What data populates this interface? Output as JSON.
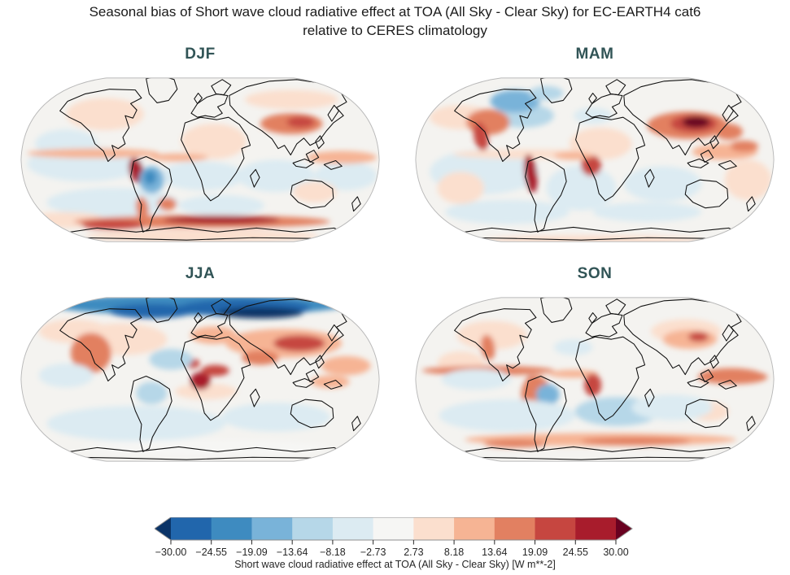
{
  "figure": {
    "title_line1": "Seasonal bias of Short wave cloud radiative effect at TOA (All Sky - Clear Sky) for EC-EARTH4 cat6",
    "title_line2": "relative to CERES climatology"
  },
  "map_base_color": "#f4f3f0",
  "map_palette": [
    "#0b3467",
    "#2166ac",
    "#3e8bc0",
    "#79b3d9",
    "#b6d7e8",
    "#dcebf2",
    "#f6f6f4",
    "#fbdfce",
    "#f6b494",
    "#e28061",
    "#c64640",
    "#a81c2c",
    "#690120"
  ],
  "feature_format": "cx,cy,rx,ry,palette_index,rotation_deg(optional) in 465x230 map coords",
  "panels": [
    {
      "id": "djf",
      "label": "DJF",
      "features": [
        [
          85,
          120,
          75,
          22,
          5
        ],
        [
          235,
          135,
          55,
          18,
          5
        ],
        [
          330,
          135,
          50,
          20,
          5
        ],
        [
          120,
          168,
          85,
          18,
          5
        ],
        [
          260,
          172,
          55,
          13,
          5
        ],
        [
          420,
          135,
          40,
          18,
          5
        ],
        [
          60,
          95,
          40,
          18,
          5
        ],
        [
          110,
          58,
          50,
          20,
          7
        ],
        [
          250,
          92,
          42,
          22,
          7
        ],
        [
          380,
          155,
          28,
          13,
          7
        ],
        [
          60,
          190,
          50,
          10,
          7
        ],
        [
          235,
          210,
          150,
          8,
          7
        ],
        [
          350,
          40,
          60,
          12,
          7
        ],
        [
          95,
          107,
          85,
          6,
          8
        ],
        [
          205,
          112,
          38,
          5,
          8
        ],
        [
          415,
          112,
          45,
          8,
          8
        ],
        [
          350,
          70,
          40,
          13,
          9
        ],
        [
          362,
          68,
          18,
          7,
          10
        ],
        [
          150,
          128,
          9,
          16,
          11,
          -15
        ],
        [
          158,
          175,
          8,
          14,
          9,
          -10
        ],
        [
          190,
          170,
          12,
          8,
          9
        ],
        [
          235,
          192,
          165,
          8,
          9
        ],
        [
          260,
          190,
          75,
          5,
          11
        ],
        [
          120,
          196,
          40,
          6,
          10
        ],
        [
          170,
          140,
          16,
          17,
          3
        ],
        [
          168,
          137,
          8,
          9,
          2
        ]
      ]
    },
    {
      "id": "mam",
      "label": "MAM",
      "features": [
        [
          90,
          130,
          70,
          28,
          5
        ],
        [
          215,
          150,
          45,
          28,
          5
        ],
        [
          320,
          145,
          50,
          22,
          5
        ],
        [
          140,
          60,
          40,
          15,
          4
        ],
        [
          230,
          60,
          25,
          10,
          5
        ],
        [
          120,
          180,
          80,
          15,
          5
        ],
        [
          300,
          180,
          70,
          12,
          5
        ],
        [
          130,
          42,
          32,
          14,
          3
        ],
        [
          170,
          32,
          22,
          9,
          4
        ],
        [
          60,
          62,
          40,
          15,
          7
        ],
        [
          150,
          108,
          100,
          6,
          7
        ],
        [
          240,
          95,
          40,
          20,
          7
        ],
        [
          60,
          150,
          30,
          20,
          7
        ],
        [
          430,
          140,
          30,
          25,
          7
        ],
        [
          230,
          215,
          140,
          6,
          7
        ],
        [
          95,
          68,
          28,
          16,
          9
        ],
        [
          86,
          86,
          9,
          18,
          10,
          -12
        ],
        [
          352,
          72,
          52,
          17,
          9
        ],
        [
          360,
          70,
          30,
          11,
          10
        ],
        [
          363,
          68,
          18,
          7,
          12
        ],
        [
          405,
          80,
          18,
          10,
          9
        ],
        [
          400,
          105,
          42,
          10,
          8
        ],
        [
          425,
          98,
          18,
          7,
          9
        ],
        [
          228,
          122,
          13,
          13,
          10
        ],
        [
          150,
          132,
          8,
          24,
          11,
          -8
        ],
        [
          205,
          110,
          25,
          5,
          8
        ]
      ]
    },
    {
      "id": "jja",
      "label": "JJA",
      "features": [
        [
          230,
          22,
          190,
          13,
          2
        ],
        [
          290,
          26,
          85,
          11,
          1
        ],
        [
          170,
          30,
          55,
          9,
          1
        ],
        [
          310,
          32,
          55,
          7,
          0
        ],
        [
          70,
          55,
          45,
          15,
          7
        ],
        [
          240,
          130,
          40,
          10,
          7
        ],
        [
          130,
          65,
          60,
          20,
          7
        ],
        [
          340,
          70,
          75,
          18,
          8
        ],
        [
          360,
          70,
          33,
          10,
          10
        ],
        [
          250,
          60,
          30,
          11,
          8
        ],
        [
          310,
          88,
          24,
          9,
          9
        ],
        [
          84,
          82,
          13,
          20,
          11,
          -10
        ],
        [
          92,
          82,
          26,
          25,
          9
        ],
        [
          233,
          117,
          13,
          11,
          11
        ],
        [
          252,
          104,
          18,
          7,
          10
        ],
        [
          222,
          95,
          10,
          6,
          10
        ],
        [
          195,
          90,
          28,
          13,
          4
        ],
        [
          170,
          132,
          20,
          14,
          4
        ],
        [
          60,
          110,
          35,
          15,
          5
        ],
        [
          150,
          170,
          115,
          22,
          5
        ],
        [
          330,
          162,
          70,
          18,
          5
        ],
        [
          240,
          200,
          160,
          10,
          6
        ],
        [
          420,
          98,
          32,
          12,
          8
        ],
        [
          400,
          118,
          25,
          8,
          8
        ]
      ]
    },
    {
      "id": "son",
      "label": "SON",
      "features": [
        [
          100,
          60,
          45,
          18,
          7
        ],
        [
          350,
          55,
          45,
          15,
          7
        ],
        [
          380,
          155,
          25,
          12,
          7
        ],
        [
          60,
          95,
          30,
          15,
          7
        ],
        [
          95,
          104,
          85,
          6,
          9
        ],
        [
          205,
          108,
          32,
          5,
          8
        ],
        [
          410,
          112,
          45,
          9,
          9
        ],
        [
          153,
          132,
          10,
          22,
          11,
          -8
        ],
        [
          158,
          136,
          20,
          26,
          9,
          -8
        ],
        [
          230,
          122,
          11,
          14,
          10
        ],
        [
          172,
          134,
          15,
          13,
          3
        ],
        [
          120,
          160,
          88,
          20,
          5
        ],
        [
          262,
          155,
          55,
          18,
          4
        ],
        [
          332,
          150,
          52,
          16,
          5
        ],
        [
          80,
          115,
          45,
          13,
          5
        ],
        [
          205,
          75,
          25,
          10,
          5
        ],
        [
          240,
          190,
          175,
          8,
          8
        ],
        [
          285,
          192,
          70,
          5,
          9
        ],
        [
          130,
          195,
          40,
          5,
          9
        ],
        [
          355,
          65,
          35,
          12,
          8
        ],
        [
          366,
          62,
          13,
          6,
          10
        ],
        [
          408,
          110,
          40,
          9,
          9
        ],
        [
          95,
          75,
          9,
          16,
          9,
          -10
        ]
      ]
    }
  ],
  "colorbar": {
    "under_color": "#0b3467",
    "over_color": "#690120",
    "segment_colors": [
      "#2166ac",
      "#3e8bc0",
      "#79b3d9",
      "#b6d7e8",
      "#dcebf2",
      "#f6f6f4",
      "#fbdfce",
      "#f6b494",
      "#e28061",
      "#c64640",
      "#a81c2c"
    ],
    "ticks": [
      "−30.00",
      "−24.55",
      "−19.09",
      "−13.64",
      "−8.18",
      "−2.73",
      "2.73",
      "8.18",
      "13.64",
      "19.09",
      "24.55",
      "30.00"
    ],
    "label": "Short wave cloud radiative effect at TOA (All Sky - Clear Sky) [W m**-2]"
  },
  "chart_data": {
    "type": "heatmap",
    "title": "Seasonal bias of Short wave cloud radiative effect at TOA (All Sky - Clear Sky) for EC-EARTH4 cat6 relative to CERES climatology",
    "subplots": [
      "DJF",
      "MAM",
      "JJA",
      "SON"
    ],
    "projection": "Robinson world maps, 2x2 grid",
    "variable": "Short wave cloud radiative effect at TOA (All Sky - Clear Sky)",
    "units": "W m**-2",
    "colormap": "RdBu_r (blue = negative bias, red = positive bias)",
    "extend": "both",
    "levels": [
      -30.0,
      -24.55,
      -19.09,
      -13.64,
      -8.18,
      -2.73,
      2.73,
      8.18,
      13.64,
      19.09,
      24.55,
      30.0
    ],
    "legend_position": "horizontal colorbar at bottom center",
    "notable_features": {
      "DJF": "strong positive (dark red) band over Southern Ocean near Antarctica and off Peru/Chile coast; red equatorial Pacific band; negative (blue) over Amazon; red patch over central Asia",
      "MAM": "large dark-red positive bias over central/eastern Asia; red western North America and coastal Peru; blue over Hudson Bay/Greenland; light blue oceans",
      "JJA": "strong negative (dark blue) bias across Arctic; dark red off California stratocumulus region; red over Eurasia, Sahel and Gulf of Guinea; light blue southern oceans",
      "SON": "red ITCZ bands in tropical Pacific/Atlantic; dark red off Peru and Gulf of Guinea; blue Amazon; red Southern Ocean band; light blue subtropical southern oceans"
    }
  }
}
